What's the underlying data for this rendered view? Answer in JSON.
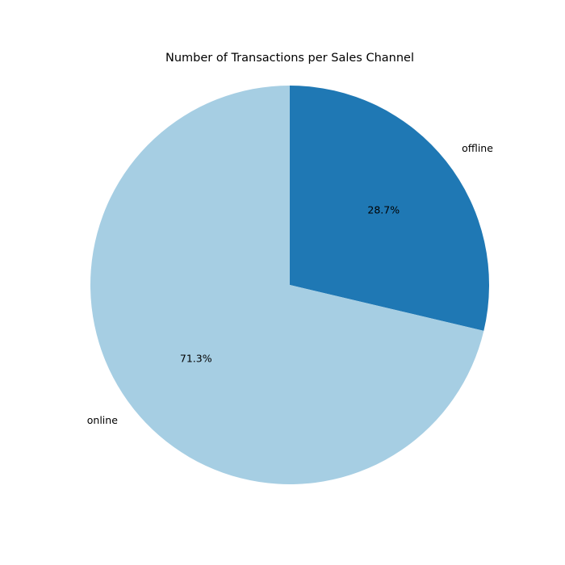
{
  "chart_data": {
    "type": "pie",
    "title": "Number of Transactions per Sales Channel",
    "start_angle_deg": 90,
    "direction": "clockwise",
    "slices": [
      {
        "label": "offline",
        "value": 28.7,
        "pct_label": "28.7%",
        "color": "#1f78b4"
      },
      {
        "label": "online",
        "value": 71.3,
        "pct_label": "71.3%",
        "color": "#a6cee3"
      }
    ]
  }
}
